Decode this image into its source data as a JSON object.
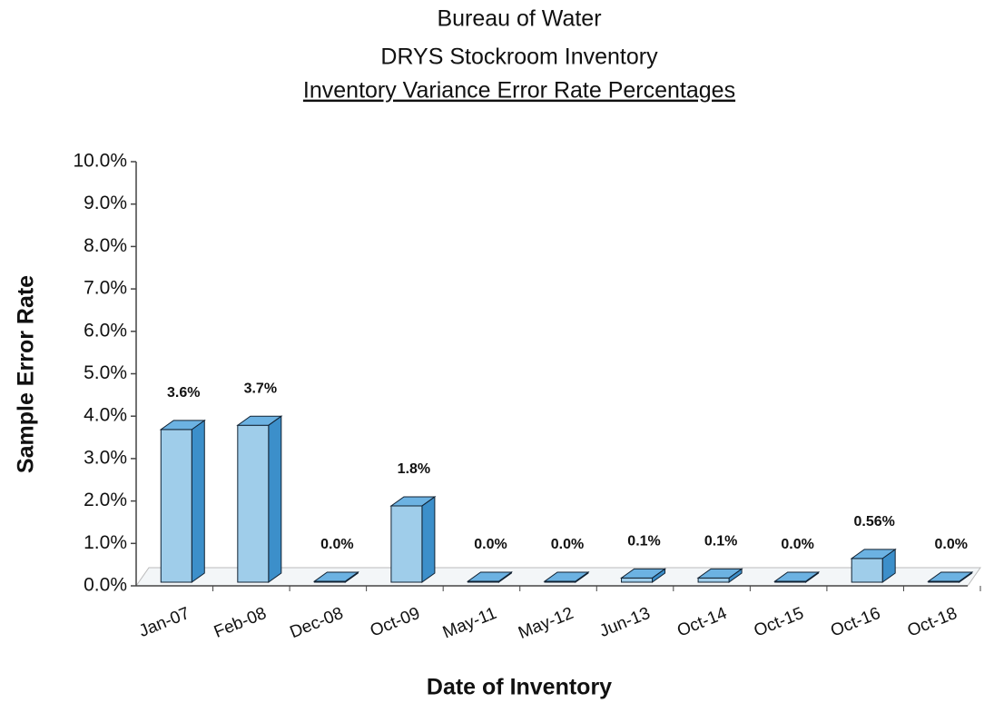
{
  "chart_data": {
    "type": "bar3d",
    "title": "Bureau of Water",
    "subtitle": "DRYS Stockroom Inventory",
    "subtitle2": "Inventory Variance Error Rate Percentages",
    "x_label": "Date of Inventory",
    "y_label": "Sample Error Rate",
    "categories": [
      "Jan-07",
      "Feb-08",
      "Dec-08",
      "Oct-09",
      "May-11",
      "May-12",
      "Jun-13",
      "Oct-14",
      "Oct-15",
      "Oct-16",
      "Oct-18"
    ],
    "values": [
      3.6,
      3.7,
      0,
      1.8,
      0,
      0,
      0.1,
      0.1,
      0,
      0.56,
      0
    ],
    "value_labels": [
      "3.6%",
      "3.7%",
      "0.0%",
      "1.8%",
      "0.0%",
      "0.0%",
      "0.1%",
      "0.1%",
      "0.0%",
      "0.56%",
      "0.0%"
    ],
    "color": "#9fcdea",
    "ylim": [
      0,
      10
    ],
    "yticks": [
      {
        "value": 0,
        "label": "0.0%"
      },
      {
        "value": 1,
        "label": "1.0%"
      },
      {
        "value": 2,
        "label": "2.0%"
      },
      {
        "value": 3,
        "label": "3.0%"
      },
      {
        "value": 4,
        "label": "4.0%"
      },
      {
        "value": 5,
        "label": "5.0%"
      },
      {
        "value": 6,
        "label": "6.0%"
      },
      {
        "value": 7,
        "label": "7.0%"
      },
      {
        "value": 8,
        "label": "8.0%"
      },
      {
        "value": 9,
        "label": "9.0%"
      },
      {
        "value": 10,
        "label": "10.0%"
      }
    ]
  }
}
